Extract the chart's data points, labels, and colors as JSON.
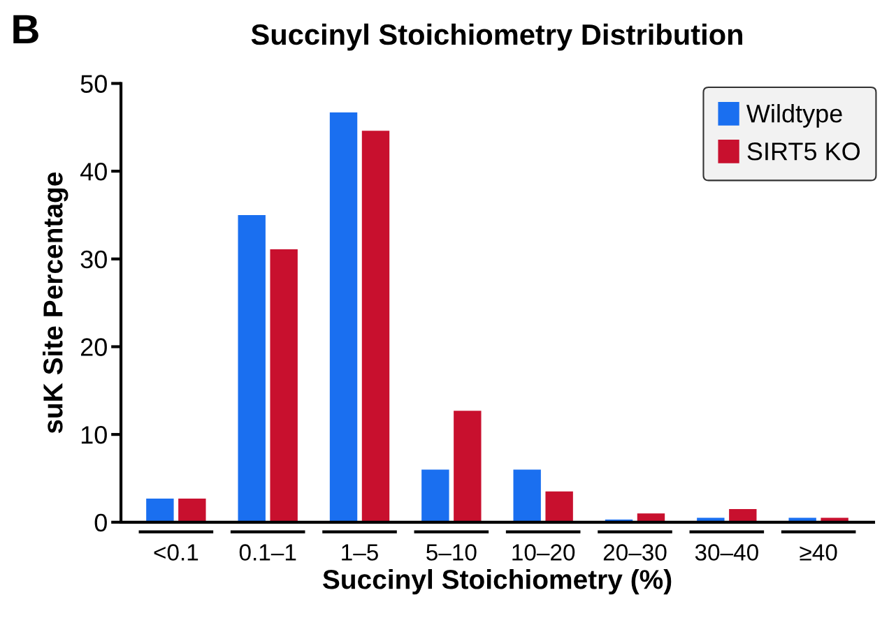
{
  "chart_data": {
    "type": "bar",
    "title": "Succinyl Stoichiometry Distribution",
    "xlabel": "Succinyl Stoichiometry (%)",
    "ylabel": "suK Site Percentage",
    "annotations": [
      "B"
    ],
    "categories": [
      "<0.1",
      "0.1–1",
      "1–5",
      "5–10",
      "10–20",
      "20–30",
      "30–40",
      "≥40"
    ],
    "series": [
      {
        "name": "Wildtype",
        "color": "#1a6ff0",
        "values": [
          2.7,
          35.0,
          46.7,
          6.0,
          6.0,
          0.3,
          0.5,
          0.5
        ]
      },
      {
        "name": "SIRT5 KO",
        "color": "#c8102e",
        "values": [
          2.7,
          31.1,
          44.6,
          12.7,
          3.5,
          1.0,
          1.5,
          0.5
        ]
      }
    ],
    "ylim": [
      0,
      50
    ],
    "yticks": [
      0,
      10,
      20,
      30,
      40,
      50
    ],
    "grid": false,
    "legend": "top right"
  }
}
